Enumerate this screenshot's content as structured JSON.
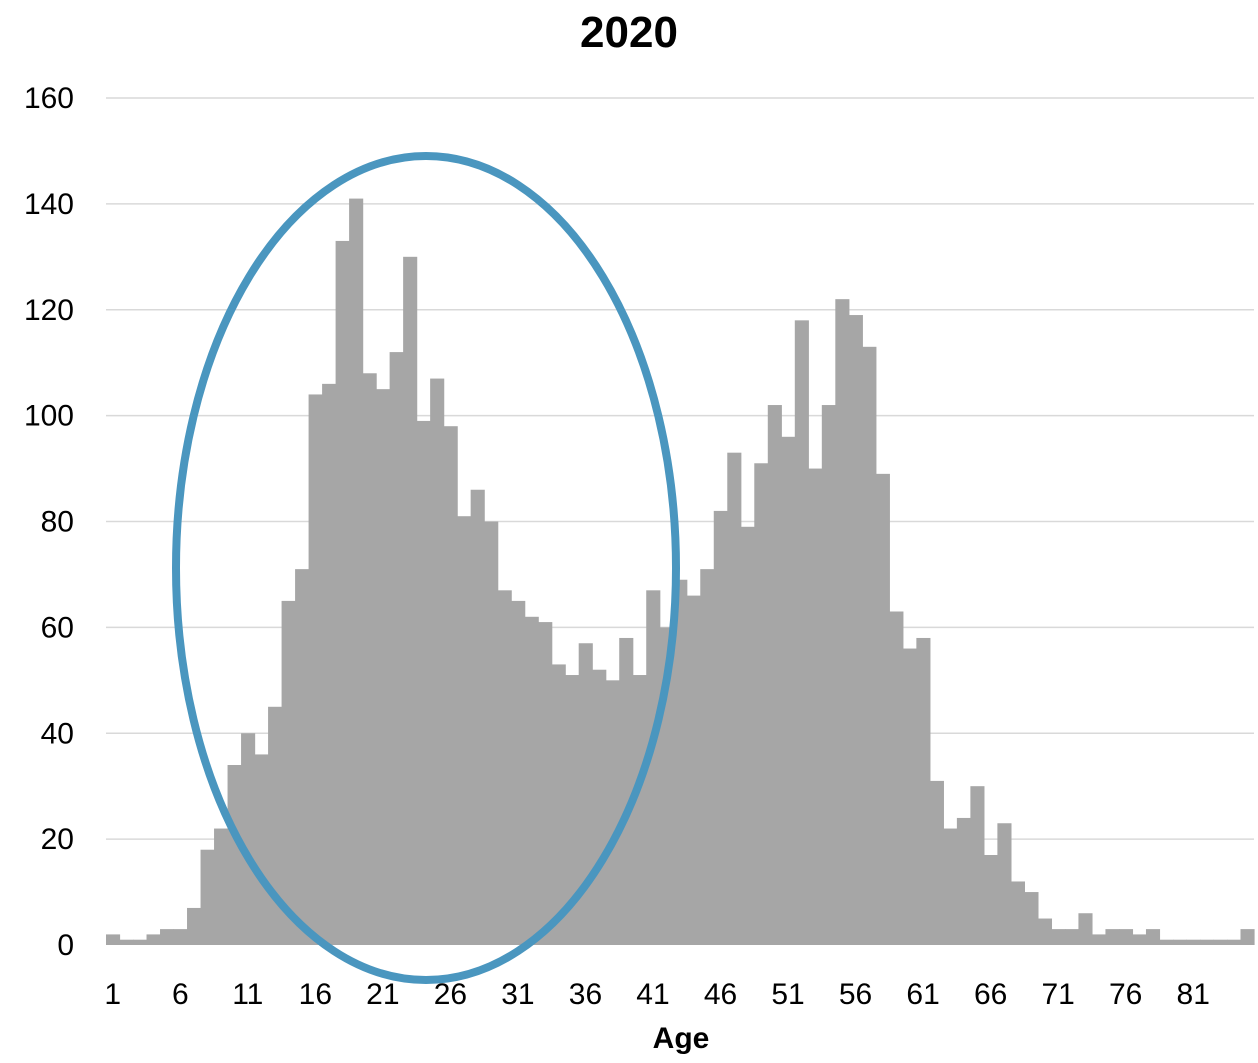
{
  "chart_data": {
    "type": "bar",
    "title": "2020",
    "xlabel": "Age",
    "ylabel": "",
    "ylim": [
      0,
      160
    ],
    "yticks": [
      0,
      20,
      40,
      60,
      80,
      100,
      120,
      140,
      160
    ],
    "x_tick_labels": [
      "1",
      "6",
      "11",
      "16",
      "21",
      "26",
      "31",
      "36",
      "41",
      "46",
      "51",
      "56",
      "61",
      "66",
      "71",
      "76",
      "81"
    ],
    "grid": true,
    "bar_color": "#a6a6a6",
    "annotation_color": "#4a96bf",
    "categories": [
      1,
      2,
      3,
      4,
      5,
      6,
      7,
      8,
      9,
      10,
      11,
      12,
      13,
      14,
      15,
      16,
      17,
      18,
      19,
      20,
      21,
      22,
      23,
      24,
      25,
      26,
      27,
      28,
      29,
      30,
      31,
      32,
      33,
      34,
      35,
      36,
      37,
      38,
      39,
      40,
      41,
      42,
      43,
      44,
      45,
      46,
      47,
      48,
      49,
      50,
      51,
      52,
      53,
      54,
      55,
      56,
      57,
      58,
      59,
      60,
      61,
      62,
      63,
      64,
      65,
      66,
      67,
      68,
      69,
      70,
      71,
      72,
      73,
      74,
      75,
      76,
      77,
      78,
      79,
      80,
      81,
      82,
      83,
      84,
      85
    ],
    "values": [
      2,
      1,
      1,
      2,
      3,
      3,
      7,
      18,
      22,
      34,
      40,
      36,
      45,
      65,
      71,
      104,
      106,
      133,
      141,
      108,
      105,
      112,
      130,
      99,
      107,
      98,
      81,
      86,
      80,
      67,
      65,
      62,
      61,
      53,
      51,
      57,
      52,
      50,
      58,
      51,
      67,
      60,
      69,
      66,
      71,
      82,
      93,
      79,
      91,
      102,
      96,
      118,
      90,
      102,
      122,
      119,
      113,
      89,
      63,
      56,
      58,
      31,
      22,
      24,
      30,
      17,
      23,
      12,
      10,
      5,
      3,
      3,
      6,
      2,
      3,
      3,
      2,
      3,
      1,
      1,
      1,
      1,
      1,
      1,
      3
    ]
  }
}
